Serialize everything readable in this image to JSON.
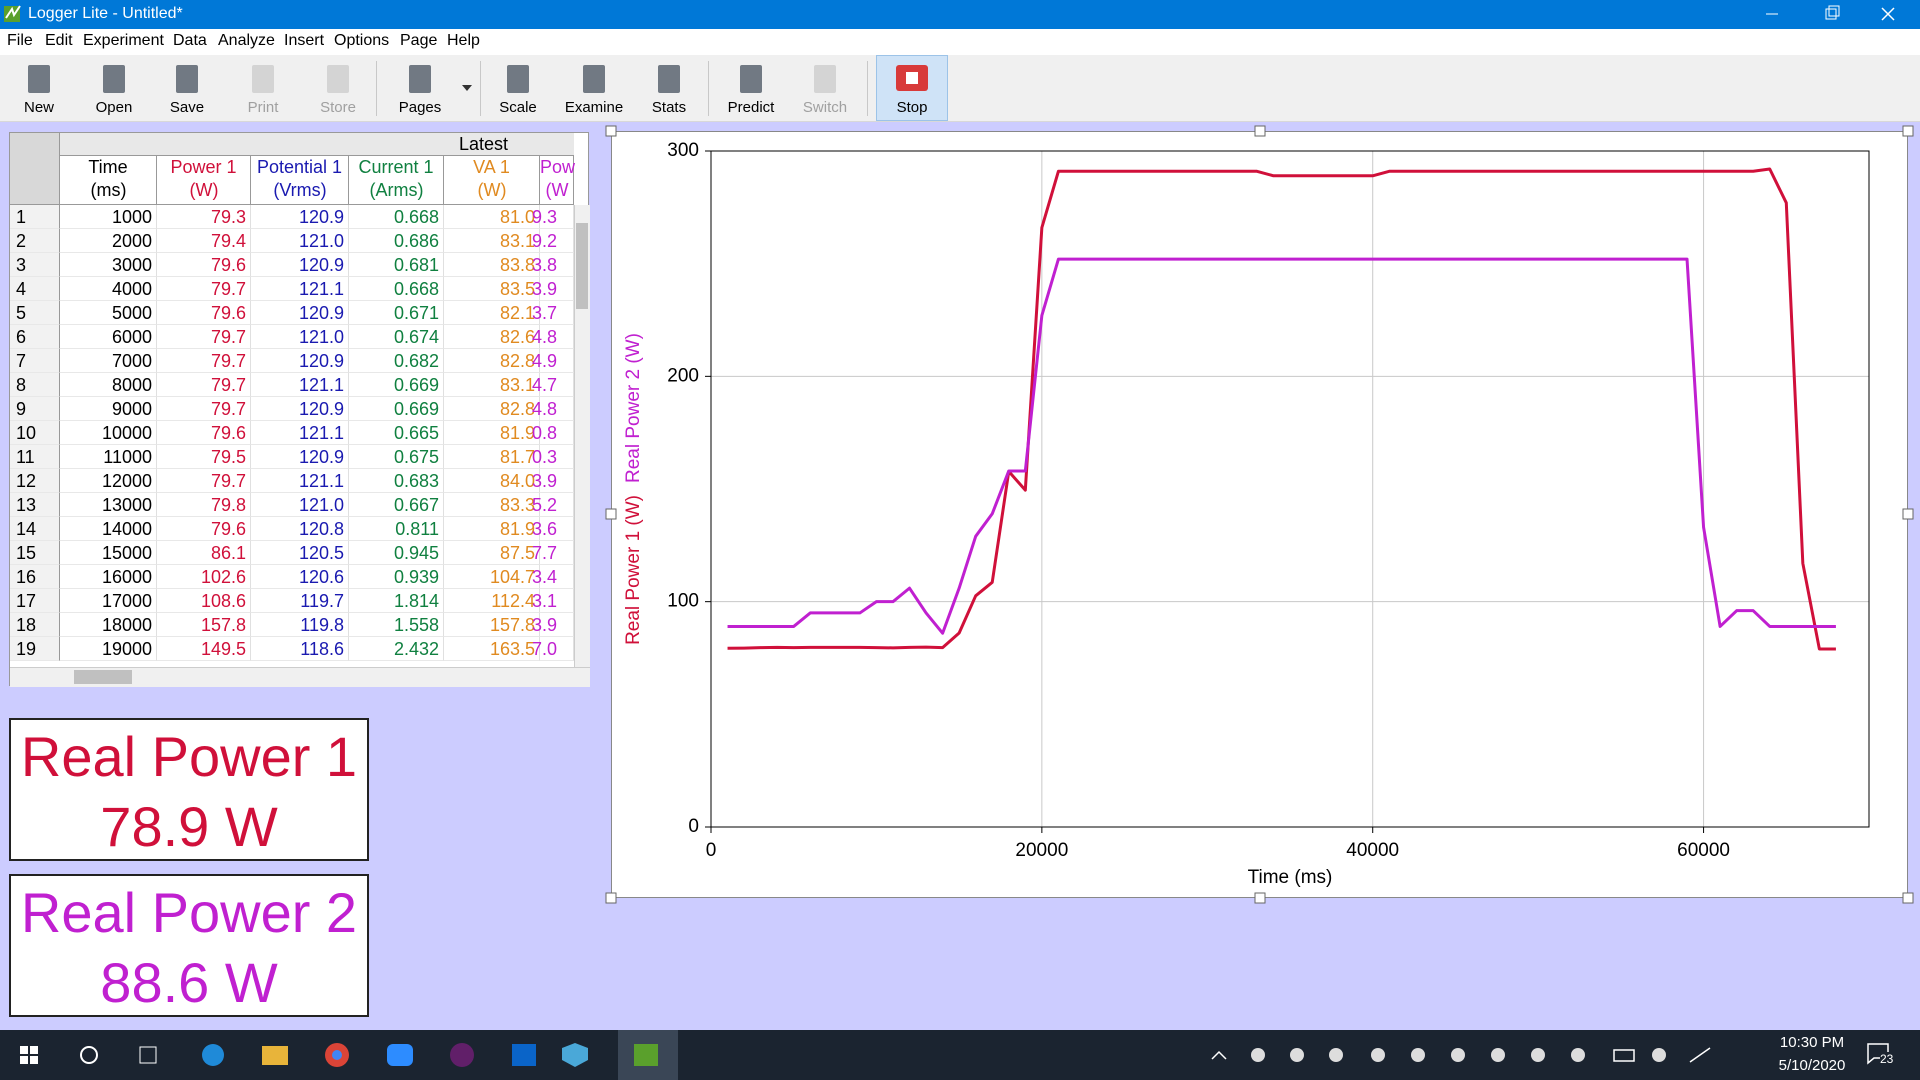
{
  "window": {
    "title": "Logger Lite - Untitled*"
  },
  "menu": [
    "File",
    "Edit",
    "Experiment",
    "Data",
    "Analyze",
    "Insert",
    "Options",
    "Page",
    "Help"
  ],
  "toolbar": [
    {
      "label": "New"
    },
    {
      "label": "Open"
    },
    {
      "label": "Save"
    },
    {
      "label": "Print",
      "enabled": false
    },
    {
      "label": "Store",
      "enabled": false
    },
    {
      "label": "Pages"
    },
    {
      "label": "Scale"
    },
    {
      "label": "Examine"
    },
    {
      "label": "Stats"
    },
    {
      "label": "Predict"
    },
    {
      "label": "Switch",
      "enabled": false
    },
    {
      "label": "Stop",
      "active": true
    }
  ],
  "table": {
    "group_header": "Latest",
    "columns": [
      {
        "name": "Time",
        "unit": "(ms)",
        "color": "#000000"
      },
      {
        "name": "Power 1",
        "unit": "(W)",
        "color": "#d0103a"
      },
      {
        "name": "Potential 1",
        "unit": "(Vrms)",
        "color": "#1a1ab0"
      },
      {
        "name": "Current 1",
        "unit": "(Arms)",
        "color": "#108040"
      },
      {
        "name": "VA 1",
        "unit": "(W)",
        "color": "#e08a20"
      },
      {
        "name": "Pow",
        "unit": "(W",
        "color": "#c020d0"
      }
    ],
    "rows": [
      [
        "1",
        "1000",
        "79.3",
        "120.9",
        "0.668",
        "81.0",
        "9.3"
      ],
      [
        "2",
        "2000",
        "79.4",
        "121.0",
        "0.686",
        "83.1",
        "9.2"
      ],
      [
        "3",
        "3000",
        "79.6",
        "120.9",
        "0.681",
        "83.8",
        "3.8"
      ],
      [
        "4",
        "4000",
        "79.7",
        "121.1",
        "0.668",
        "83.5",
        "3.9"
      ],
      [
        "5",
        "5000",
        "79.6",
        "120.9",
        "0.671",
        "82.1",
        "3.7"
      ],
      [
        "6",
        "6000",
        "79.7",
        "121.0",
        "0.674",
        "82.6",
        "4.8"
      ],
      [
        "7",
        "7000",
        "79.7",
        "120.9",
        "0.682",
        "82.8",
        "4.9"
      ],
      [
        "8",
        "8000",
        "79.7",
        "121.1",
        "0.669",
        "83.1",
        "4.7"
      ],
      [
        "9",
        "9000",
        "79.7",
        "120.9",
        "0.669",
        "82.8",
        "4.8"
      ],
      [
        "10",
        "10000",
        "79.6",
        "121.1",
        "0.665",
        "81.9",
        "0.8"
      ],
      [
        "11",
        "11000",
        "79.5",
        "120.9",
        "0.675",
        "81.7",
        "0.3"
      ],
      [
        "12",
        "12000",
        "79.7",
        "121.1",
        "0.683",
        "84.0",
        "3.9"
      ],
      [
        "13",
        "13000",
        "79.8",
        "121.0",
        "0.667",
        "83.3",
        "5.2"
      ],
      [
        "14",
        "14000",
        "79.6",
        "120.8",
        "0.811",
        "81.9",
        "3.6"
      ],
      [
        "15",
        "15000",
        "86.1",
        "120.5",
        "0.945",
        "87.5",
        "7.7"
      ],
      [
        "16",
        "16000",
        "102.6",
        "120.6",
        "0.939",
        "104.7",
        "3.4"
      ],
      [
        "17",
        "17000",
        "108.6",
        "119.7",
        "1.814",
        "112.4",
        "3.1"
      ],
      [
        "18",
        "18000",
        "157.8",
        "119.8",
        "1.558",
        "157.8",
        "3.9"
      ],
      [
        "19",
        "19000",
        "149.5",
        "118.6",
        "2.432",
        "163.5",
        "7.0"
      ]
    ]
  },
  "meters": [
    {
      "label": "Real Power 1",
      "value": "78.9 W",
      "color": "#d0103a"
    },
    {
      "label": "Real Power 2",
      "value": "88.6 W",
      "color": "#c020d0"
    }
  ],
  "graph": {
    "type": "line",
    "x_label": "Time (ms)",
    "grid": true,
    "xlim": [
      0,
      70000
    ],
    "ylim": [
      0,
      300
    ],
    "xticks": [
      0,
      20000,
      40000,
      60000
    ],
    "yticks": [
      0,
      100,
      200,
      300
    ],
    "x": [
      1000,
      2000,
      3000,
      4000,
      5000,
      6000,
      7000,
      8000,
      9000,
      10000,
      11000,
      12000,
      13000,
      14000,
      15000,
      16000,
      17000,
      18000,
      19000,
      20000,
      21000,
      22000,
      23000,
      24000,
      25000,
      26000,
      27000,
      28000,
      29000,
      30000,
      31000,
      32000,
      33000,
      34000,
      35000,
      36000,
      37000,
      38000,
      39000,
      40000,
      41000,
      42000,
      43000,
      44000,
      45000,
      46000,
      47000,
      48000,
      49000,
      50000,
      51000,
      52000,
      53000,
      54000,
      55000,
      56000,
      57000,
      58000,
      59000,
      60000,
      61000,
      62000,
      63000,
      64000,
      65000,
      66000,
      67000,
      68000
    ],
    "series": [
      {
        "name": "Real Power 1 (W)",
        "color": "#d0103a",
        "values": [
          79.3,
          79.4,
          79.6,
          79.7,
          79.6,
          79.7,
          79.7,
          79.7,
          79.7,
          79.6,
          79.5,
          79.7,
          79.8,
          79.6,
          86.1,
          102.6,
          108.6,
          157.8,
          149.5,
          266,
          291,
          291,
          291,
          291,
          291,
          291,
          291,
          291,
          291,
          291,
          291,
          291,
          291,
          289,
          289,
          289,
          289,
          289,
          289,
          289,
          291,
          291,
          291,
          291,
          291,
          291,
          291,
          291,
          291,
          291,
          291,
          291,
          291,
          291,
          291,
          291,
          291,
          291,
          291,
          291,
          291,
          291,
          291,
          292,
          277,
          117,
          79,
          79
        ]
      },
      {
        "name": "Real Power 2 (W)",
        "color": "#c020d0",
        "values": [
          89,
          89,
          89,
          89,
          89,
          95,
          95,
          95,
          95,
          100,
          100,
          106,
          95,
          86,
          106,
          129,
          139,
          158,
          158,
          227,
          252,
          252,
          252,
          252,
          252,
          252,
          252,
          252,
          252,
          252,
          252,
          252,
          252,
          252,
          252,
          252,
          252,
          252,
          252,
          252,
          252,
          252,
          252,
          252,
          252,
          252,
          252,
          252,
          252,
          252,
          252,
          252,
          252,
          252,
          252,
          252,
          252,
          252,
          252,
          133,
          89,
          96,
          96,
          89,
          89,
          89,
          89,
          89
        ]
      }
    ]
  },
  "taskbar": {
    "time": "10:30 PM",
    "date": "5/10/2020",
    "notifications": "23"
  }
}
